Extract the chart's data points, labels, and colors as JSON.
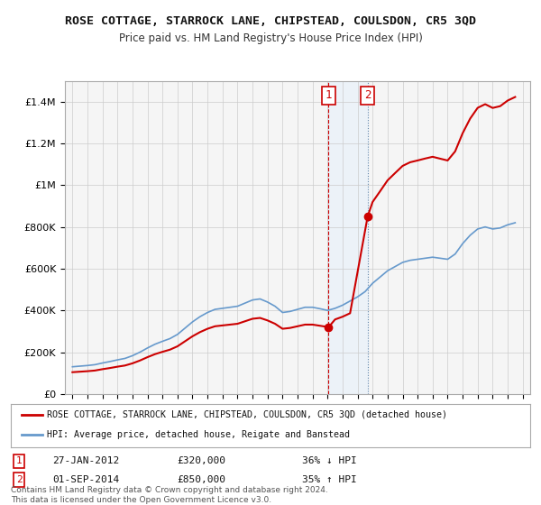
{
  "title": "ROSE COTTAGE, STARROCK LANE, CHIPSTEAD, COULSDON, CR5 3QD",
  "subtitle": "Price paid vs. HM Land Registry's House Price Index (HPI)",
  "legend_line1": "ROSE COTTAGE, STARROCK LANE, CHIPSTEAD, COULSDON, CR5 3QD (detached house)",
  "legend_line2": "HPI: Average price, detached house, Reigate and Banstead",
  "sale1_date": "27-JAN-2012",
  "sale1_price": "£320,000",
  "sale1_hpi": "36% ↓ HPI",
  "sale2_date": "01-SEP-2014",
  "sale2_price": "£850,000",
  "sale2_hpi": "35% ↑ HPI",
  "footer": "Contains HM Land Registry data © Crown copyright and database right 2024.\nThis data is licensed under the Open Government Licence v3.0.",
  "hpi_color": "#6699cc",
  "price_color": "#cc0000",
  "sale1_x": 2012.07,
  "sale2_x": 2014.67,
  "sale1_y": 320000,
  "sale2_y": 850000,
  "ylim": [
    0,
    1500000
  ],
  "xlim": [
    1994.5,
    2025.5
  ],
  "background_color": "#ffffff",
  "plot_bg": "#f5f5f5",
  "highlight_color": "#ddeeff"
}
